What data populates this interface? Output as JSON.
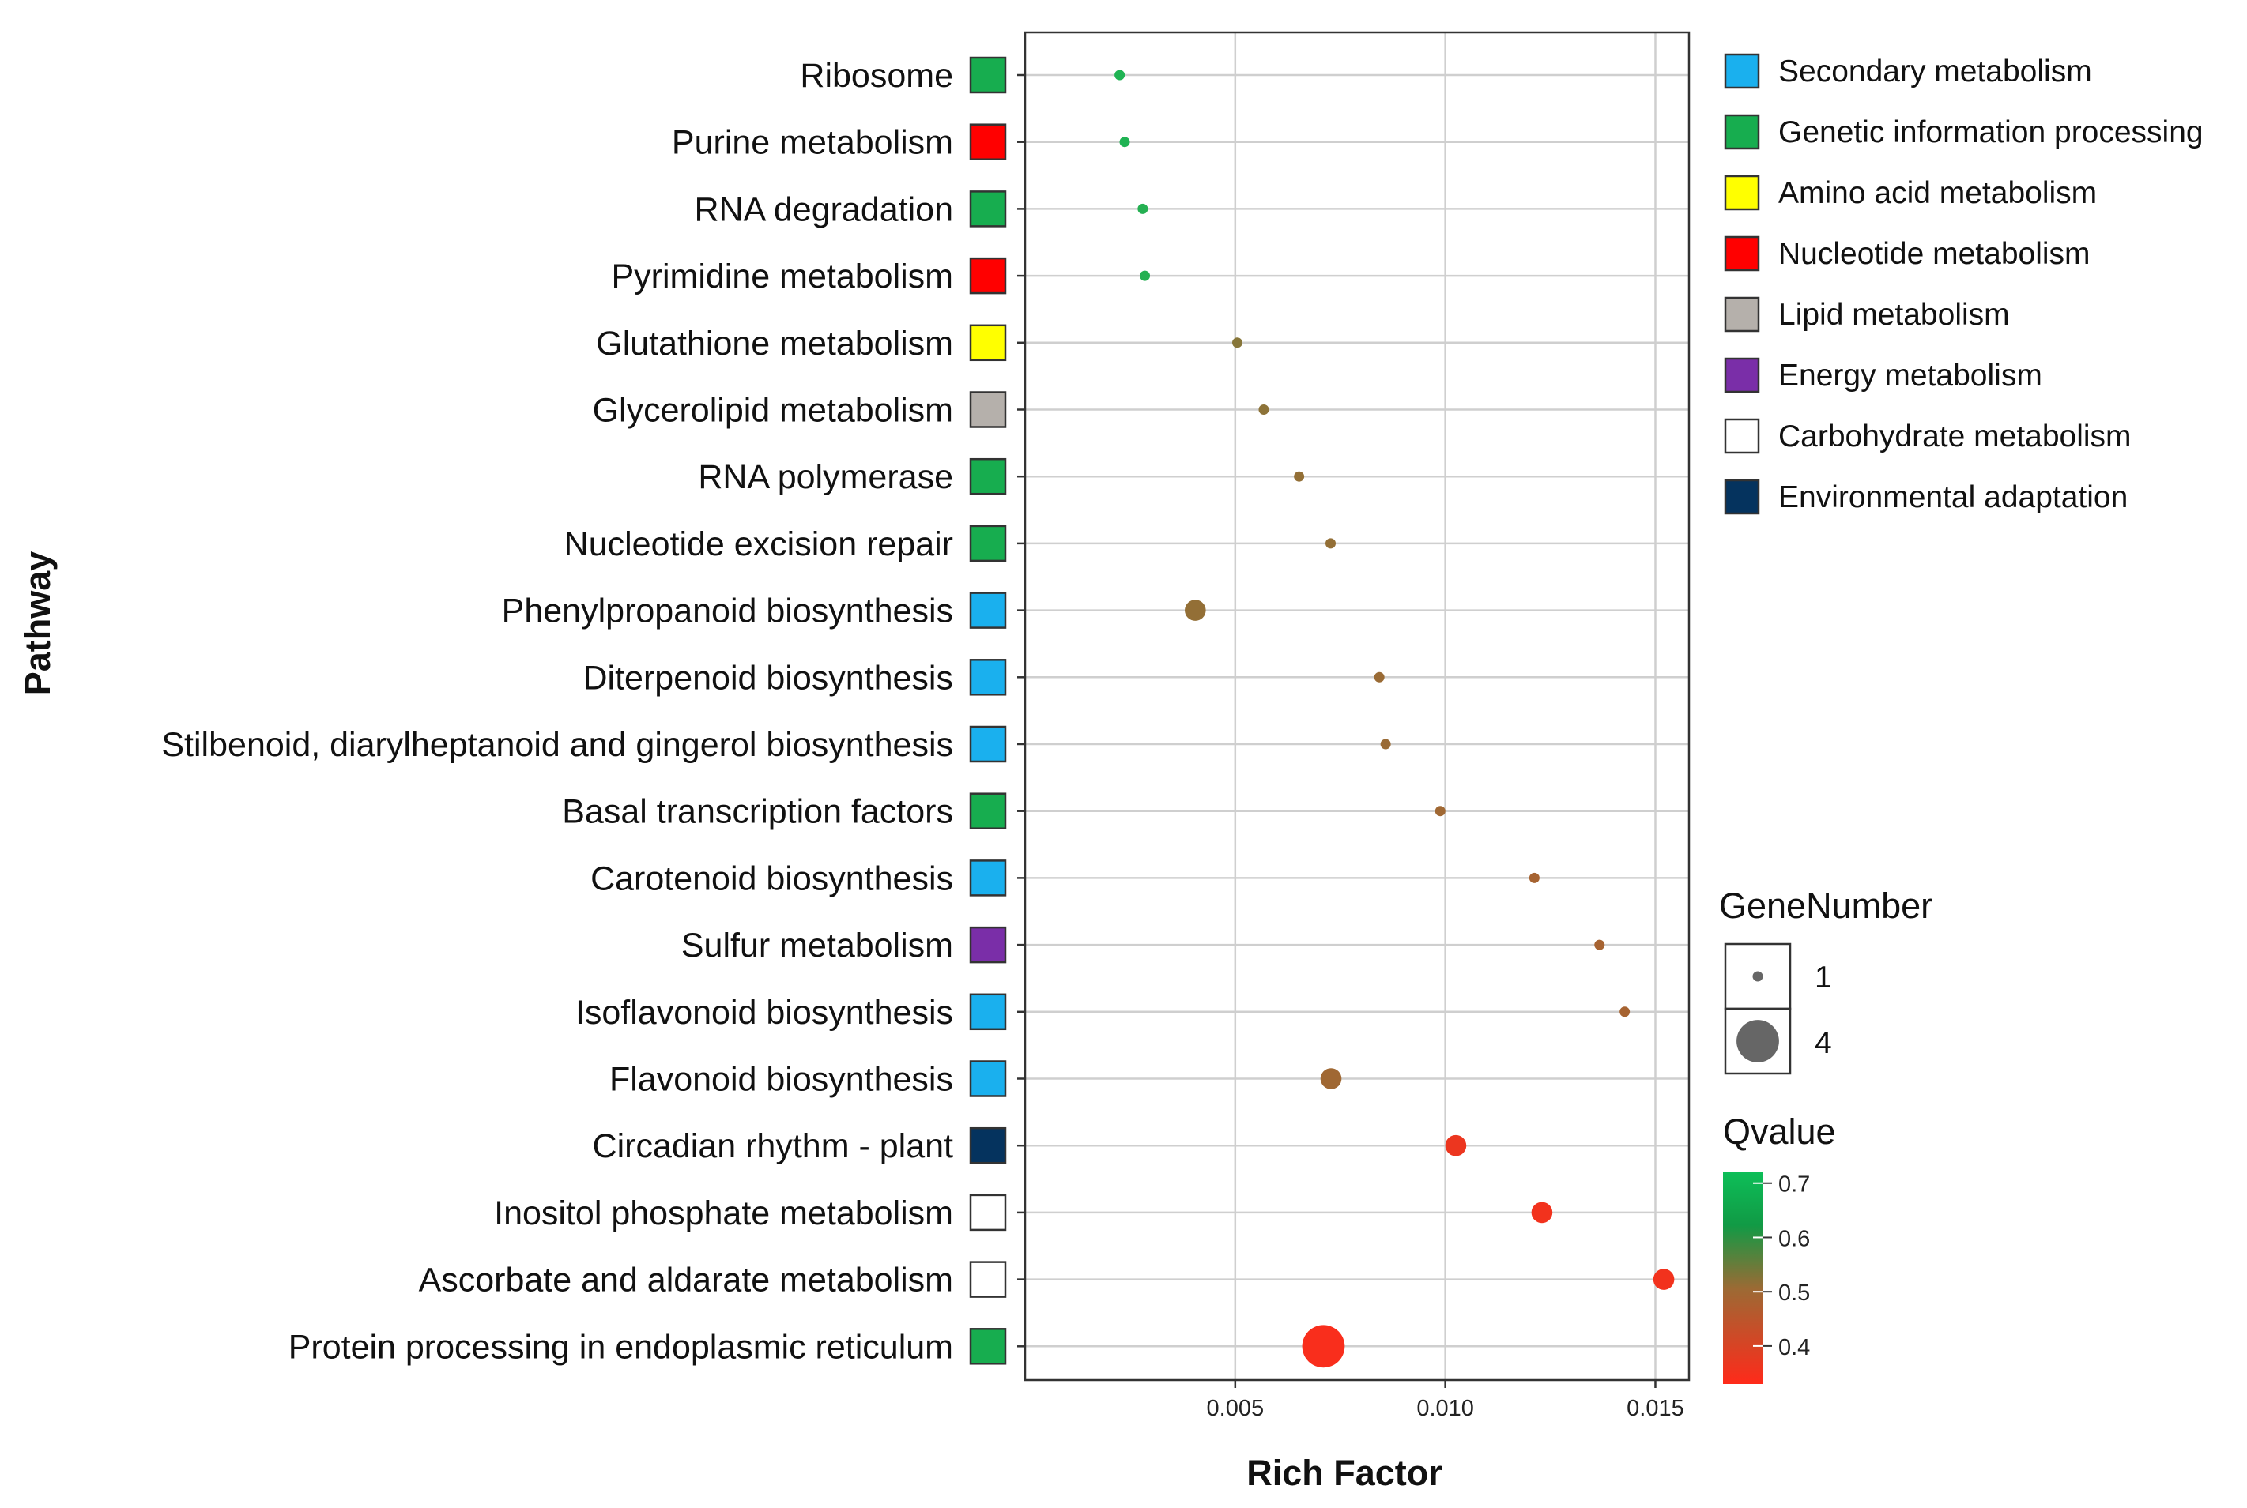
{
  "chart_data": {
    "type": "scatter",
    "title": "",
    "xlabel": "Rich Factor",
    "ylabel": "Pathway",
    "xlim": [
      0.0,
      0.0158
    ],
    "x_ticks": [
      0.005,
      0.01,
      0.015
    ],
    "x_tick_labels": [
      "0.005",
      "0.010",
      "0.015"
    ],
    "grid": true,
    "categories": [
      "Ribosome",
      "Purine metabolism",
      "RNA degradation",
      "Pyrimidine metabolism",
      "Glutathione metabolism",
      "Glycerolipid metabolism",
      "RNA polymerase",
      "Nucleotide excision repair",
      "Phenylpropanoid biosynthesis",
      "Diterpenoid biosynthesis",
      "Stilbenoid, diarylheptanoid and gingerol biosynthesis",
      "Basal transcription factors",
      "Carotenoid biosynthesis",
      "Sulfur metabolism",
      "Isoflavonoid biosynthesis",
      "Flavonoid biosynthesis",
      "Circadian rhythm - plant",
      "Inositol phosphate metabolism",
      "Ascorbate and aldarate metabolism",
      "Protein processing in endoplasmic reticulum"
    ],
    "points": [
      {
        "pathway": "Ribosome",
        "rich_factor": 0.00225,
        "gene_number": 1,
        "qvalue": 0.69,
        "category": "Genetic information processing"
      },
      {
        "pathway": "Purine metabolism",
        "rich_factor": 0.00237,
        "gene_number": 1,
        "qvalue": 0.69,
        "category": "Nucleotide metabolism"
      },
      {
        "pathway": "RNA degradation",
        "rich_factor": 0.0028,
        "gene_number": 1,
        "qvalue": 0.68,
        "category": "Genetic information processing"
      },
      {
        "pathway": "Pyrimidine metabolism",
        "rich_factor": 0.00285,
        "gene_number": 1,
        "qvalue": 0.68,
        "category": "Nucleotide metabolism"
      },
      {
        "pathway": "Glutathione metabolism",
        "rich_factor": 0.00505,
        "gene_number": 1,
        "qvalue": 0.52,
        "category": "Amino acid metabolism"
      },
      {
        "pathway": "Glycerolipid metabolism",
        "rich_factor": 0.00568,
        "gene_number": 1,
        "qvalue": 0.51,
        "category": "Lipid metabolism"
      },
      {
        "pathway": "RNA polymerase",
        "rich_factor": 0.00652,
        "gene_number": 1,
        "qvalue": 0.5,
        "category": "Genetic information processing"
      },
      {
        "pathway": "Nucleotide excision repair",
        "rich_factor": 0.00727,
        "gene_number": 1,
        "qvalue": 0.5,
        "category": "Genetic information processing"
      },
      {
        "pathway": "Phenylpropanoid biosynthesis",
        "rich_factor": 0.00405,
        "gene_number": 2,
        "qvalue": 0.5,
        "category": "Secondary metabolism"
      },
      {
        "pathway": "Diterpenoid biosynthesis",
        "rich_factor": 0.00843,
        "gene_number": 1,
        "qvalue": 0.49,
        "category": "Secondary metabolism"
      },
      {
        "pathway": "Stilbenoid, diarylheptanoid and gingerol biosynthesis",
        "rich_factor": 0.00858,
        "gene_number": 1,
        "qvalue": 0.49,
        "category": "Secondary metabolism"
      },
      {
        "pathway": "Basal transcription factors",
        "rich_factor": 0.00988,
        "gene_number": 1,
        "qvalue": 0.48,
        "category": "Genetic information processing"
      },
      {
        "pathway": "Carotenoid biosynthesis",
        "rich_factor": 0.01212,
        "gene_number": 1,
        "qvalue": 0.47,
        "category": "Secondary metabolism"
      },
      {
        "pathway": "Sulfur metabolism",
        "rich_factor": 0.01367,
        "gene_number": 1,
        "qvalue": 0.47,
        "category": "Energy metabolism"
      },
      {
        "pathway": "Isoflavonoid biosynthesis",
        "rich_factor": 0.01427,
        "gene_number": 1,
        "qvalue": 0.47,
        "category": "Secondary metabolism"
      },
      {
        "pathway": "Flavonoid biosynthesis",
        "rich_factor": 0.00728,
        "gene_number": 2,
        "qvalue": 0.48,
        "category": "Secondary metabolism"
      },
      {
        "pathway": "Circadian rhythm - plant",
        "rich_factor": 0.01025,
        "gene_number": 2,
        "qvalue": 0.36,
        "category": "Environmental adaptation"
      },
      {
        "pathway": "Inositol phosphate metabolism",
        "rich_factor": 0.0123,
        "gene_number": 2,
        "qvalue": 0.35,
        "category": "Carbohydrate metabolism"
      },
      {
        "pathway": "Ascorbate and aldarate metabolism",
        "rich_factor": 0.0152,
        "gene_number": 2,
        "qvalue": 0.35,
        "category": "Carbohydrate metabolism"
      },
      {
        "pathway": "Protein processing in endoplasmic reticulum",
        "rich_factor": 0.0071,
        "gene_number": 4,
        "qvalue": 0.34,
        "category": "Genetic information processing"
      }
    ],
    "category_legend": [
      {
        "name": "Secondary metabolism",
        "color": "#1ab0ee"
      },
      {
        "name": "Genetic information processing",
        "color": "#17ad4f"
      },
      {
        "name": "Amino acid metabolism",
        "color": "#ffff00"
      },
      {
        "name": "Nucleotide metabolism",
        "color": "#ff0000"
      },
      {
        "name": "Lipid metabolism",
        "color": "#b5b0ab"
      },
      {
        "name": "Energy metabolism",
        "color": "#7a2ea8"
      },
      {
        "name": "Carbohydrate metabolism",
        "color": "#ffffff"
      },
      {
        "name": "Environmental adaptation",
        "color": "#05335e"
      }
    ],
    "size_legend": {
      "title": "GeneNumber",
      "entries": [
        {
          "label": "1",
          "value": 1
        },
        {
          "label": "4",
          "value": 4
        }
      ]
    },
    "color_legend": {
      "title": "Qvalue",
      "range": [
        0.33,
        0.72
      ],
      "ticks": [
        0.7,
        0.6,
        0.5,
        0.4
      ],
      "tick_labels": [
        "0.7",
        "0.6",
        "0.5",
        "0.4"
      ],
      "colors": {
        "low": "#ff2a1a",
        "mid": "#9c6a34",
        "high": "#0dbe58"
      }
    }
  }
}
